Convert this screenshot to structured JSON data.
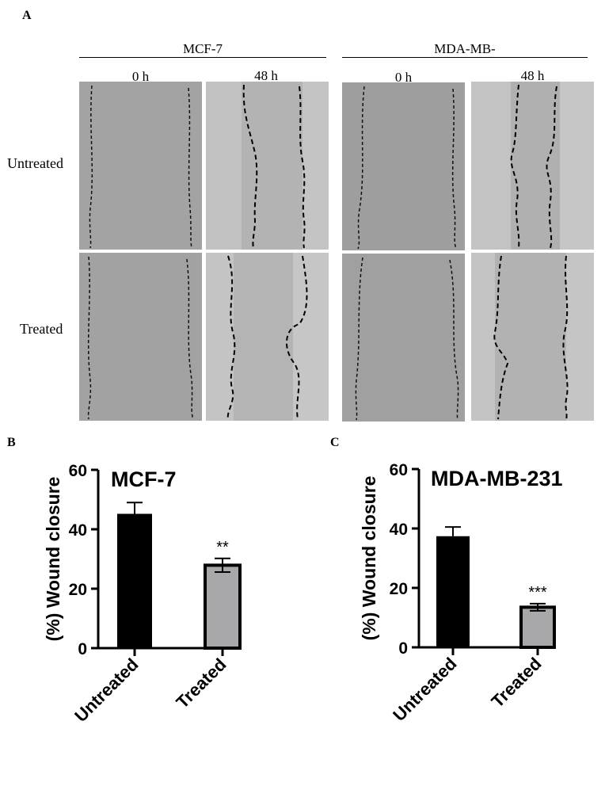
{
  "figure": {
    "panel_a": {
      "letter": "A",
      "groups": [
        {
          "name": "MCF-7",
          "timepoints": [
            "0 h",
            "48 h"
          ]
        },
        {
          "name": "MDA-MB-",
          "timepoints": [
            "0 h",
            "48 h"
          ]
        }
      ],
      "rows": [
        "Untreated",
        "Treated"
      ]
    },
    "panel_b": {
      "letter": "B"
    },
    "panel_c": {
      "letter": "C"
    }
  },
  "chart_data": [
    {
      "type": "bar",
      "title": "MCF-7",
      "ylabel": "(%) Wound closure",
      "xlabel": "",
      "categories": [
        "Untreated",
        "Treated"
      ],
      "values": [
        45.2,
        27.9
      ],
      "errors": [
        3.8,
        2.3
      ],
      "significance": [
        "",
        "**"
      ],
      "bar_colors": [
        "#000000",
        "#a8a8aa"
      ],
      "ylim": [
        0,
        60
      ],
      "yticks": [
        0,
        20,
        40,
        60
      ]
    },
    {
      "type": "bar",
      "title": "MDA-MB-231",
      "ylabel": "(%) Wound closure",
      "xlabel": "",
      "categories": [
        "Untreated",
        "Treated"
      ],
      "values": [
        37.4,
        13.5
      ],
      "errors": [
        3.1,
        1.2
      ],
      "significance": [
        "",
        "***"
      ],
      "bar_colors": [
        "#000000",
        "#a8a8aa"
      ],
      "ylim": [
        0,
        60
      ],
      "yticks": [
        0,
        20,
        40,
        60
      ]
    }
  ]
}
